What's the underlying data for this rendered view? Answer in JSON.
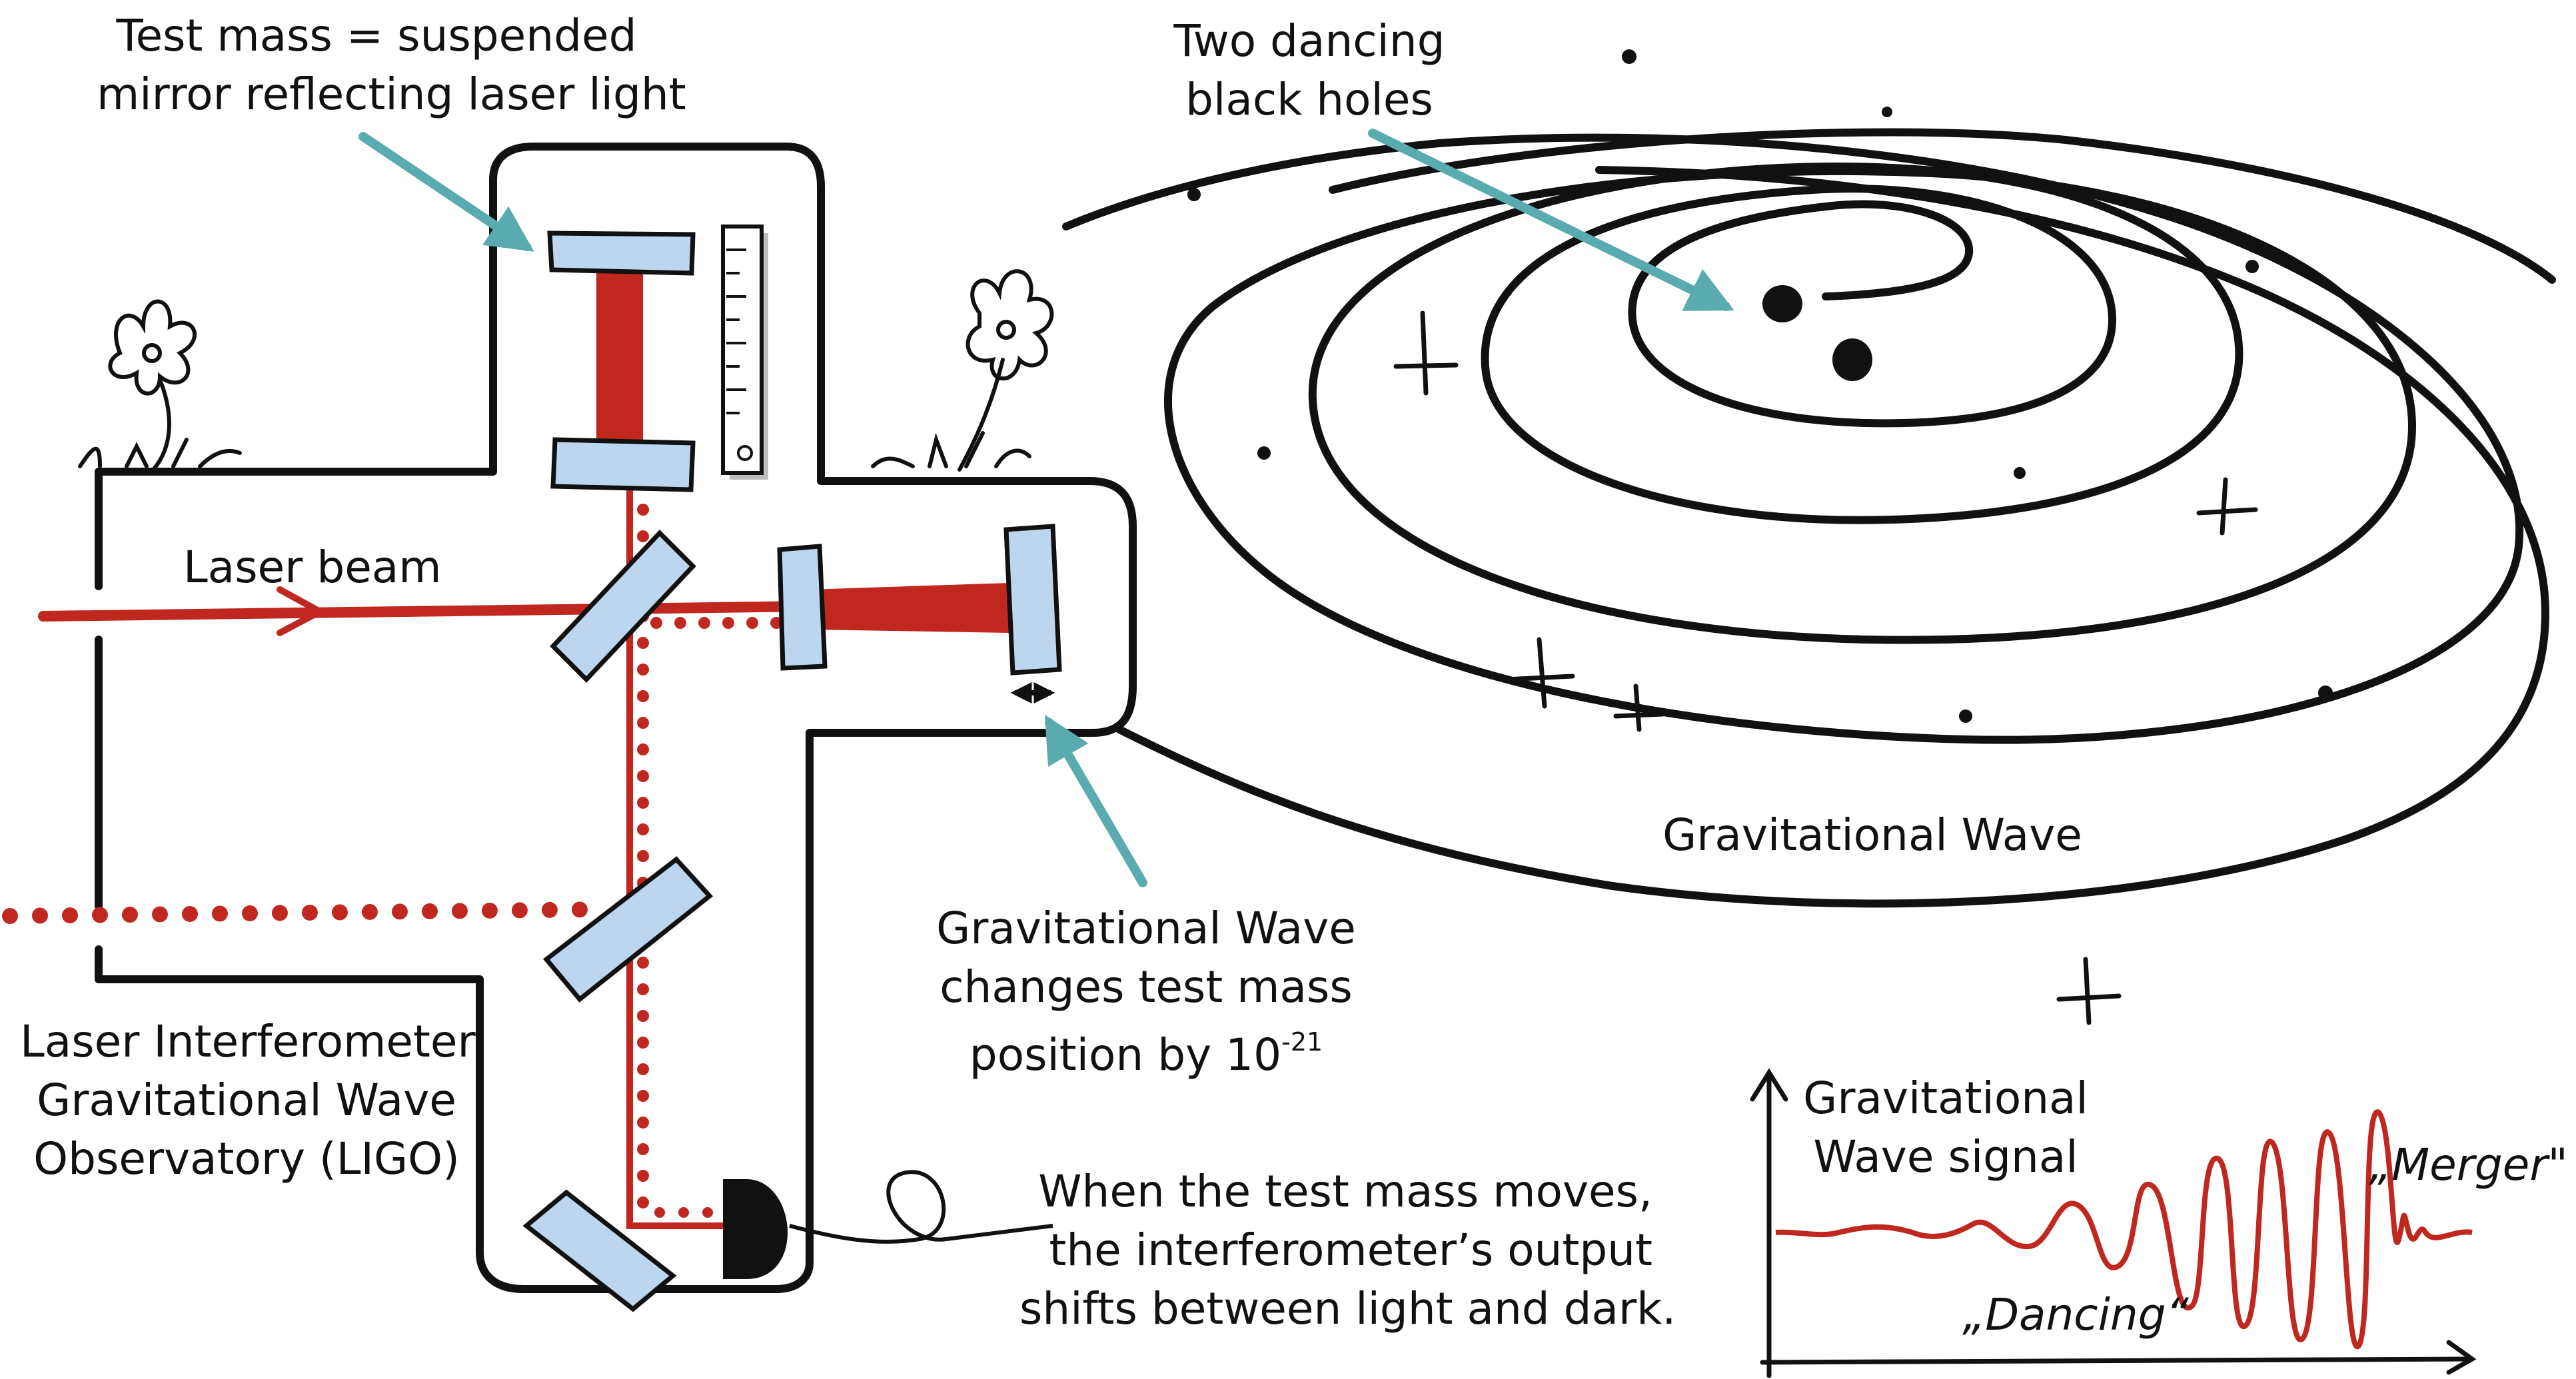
{
  "colors": {
    "ink": "#111111",
    "laser": "#c0281f",
    "mirror": "#bcd6ef",
    "arrow": "#5aabb0",
    "shadow": "#bdbdbd"
  },
  "labels": {
    "test_mass": [
      "Test mass = suspended",
      "mirror reflecting laser light"
    ],
    "black_holes": [
      "Two dancing",
      "black holes"
    ],
    "laser_beam": "Laser beam",
    "gw": "Gravitational Wave",
    "gw_changes": [
      "Gravitational Wave",
      "changes test mass"
    ],
    "gw_position_prefix": "position by 10",
    "gw_position_exponent": "-21",
    "ligo": [
      "Laser Interferometer",
      "Gravitational Wave",
      "Observatory (LIGO)"
    ],
    "output": [
      "When the test mass moves,",
      "the interferometer’s output",
      "shifts between light and dark."
    ],
    "signal_title": [
      "Gravitational",
      "Wave signal"
    ],
    "merger": "„Merger\"",
    "dancing": "„Dancing“"
  },
  "icons": [
    "flower-icon",
    "flower-icon",
    "black-hole-icon",
    "star-sparkle-icon",
    "ruler-icon",
    "photodetector-icon",
    "double-arrow-icon"
  ]
}
